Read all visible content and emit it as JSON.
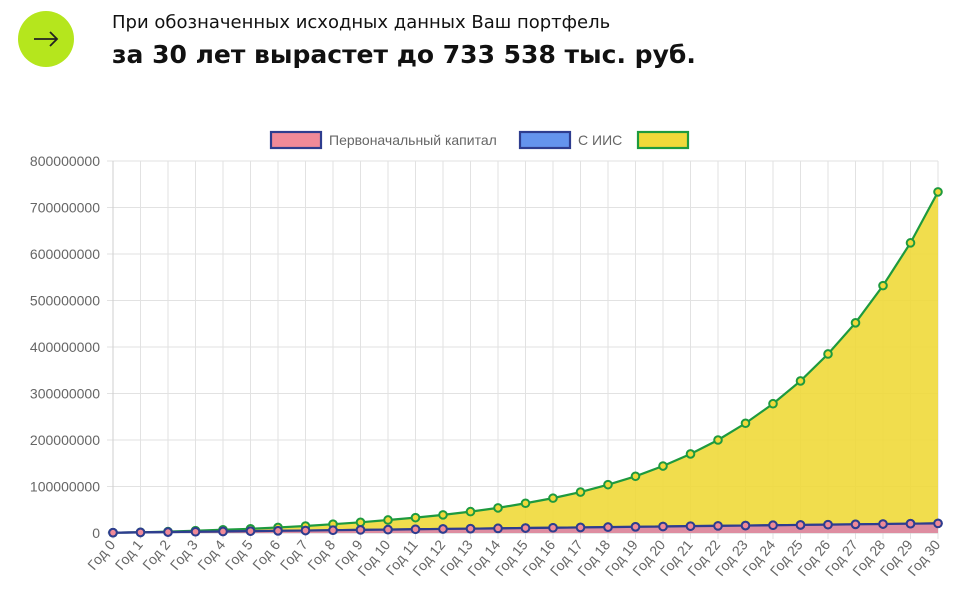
{
  "header": {
    "subtitle": "При обозначенных исходных данных Ваш портфель",
    "title": "за 30 лет вырастет до 733 538 тыс. руб.",
    "button_icon": "arrow-right-icon"
  },
  "colors": {
    "accent": "#b5e61d",
    "series_initial_fill": "#f08a98",
    "series_initial_border": "#2e3d8f",
    "series_iis_fill": "#6494ed",
    "series_iis_border": "#2e3d8f",
    "series_third_fill": "#f0d93a",
    "series_third_border": "#1e9a3e"
  },
  "chart_data": {
    "type": "area",
    "categories": [
      "Год 0",
      "Год 1",
      "Год 2",
      "Год 3",
      "Год 4",
      "Год 5",
      "Год 6",
      "Год 7",
      "Год 8",
      "Год 9",
      "Год 10",
      "Год 11",
      "Год 12",
      "Год 13",
      "Год 14",
      "Год 15",
      "Год 16",
      "Год 17",
      "Год 18",
      "Год 19",
      "Год 20",
      "Год 21",
      "Год 22",
      "Год 23",
      "Год 24",
      "Год 25",
      "Год 26",
      "Год 27",
      "Год 28",
      "Год 29",
      "Год 30"
    ],
    "ylim": [
      0,
      800000000
    ],
    "yticks": [
      "0",
      "100000000",
      "200000000",
      "300000000",
      "400000000",
      "500000000",
      "600000000",
      "700000000",
      "800000000"
    ],
    "grid": true,
    "legend_position": "top",
    "series": [
      {
        "name": "Первоначальный капитал",
        "values": [
          700000,
          1300000,
          2000000,
          2700000,
          3300000,
          4000000,
          4700000,
          5300000,
          6000000,
          6700000,
          7300000,
          8000000,
          8700000,
          9300000,
          10000000,
          10700000,
          11300000,
          12000000,
          12700000,
          13300000,
          14000000,
          14700000,
          15300000,
          16000000,
          16700000,
          17300000,
          18000000,
          18700000,
          19300000,
          20000000,
          20700000
        ]
      },
      {
        "name": "С ИИС",
        "values": [
          700000,
          1300000,
          2000000,
          2700000,
          3300000,
          4000000,
          4700000,
          5300000,
          6000000,
          6700000,
          7300000,
          8000000,
          8700000,
          9300000,
          10000000,
          10700000,
          11300000,
          12000000,
          12700000,
          13300000,
          14000000,
          14700000,
          15300000,
          16000000,
          16700000,
          17300000,
          18000000,
          18700000,
          19300000,
          20000000,
          20700000
        ]
      },
      {
        "name": "",
        "values": [
          700000,
          1500000,
          3000000,
          5000000,
          7000000,
          9000000,
          12000000,
          15000000,
          19000000,
          23000000,
          28000000,
          33000000,
          39000000,
          46000000,
          54000000,
          64000000,
          75000000,
          88000000,
          104000000,
          122000000,
          144000000,
          170000000,
          200000000,
          236000000,
          278000000,
          327000000,
          385000000,
          452000000,
          532000000,
          624000000,
          733538000
        ]
      }
    ]
  }
}
